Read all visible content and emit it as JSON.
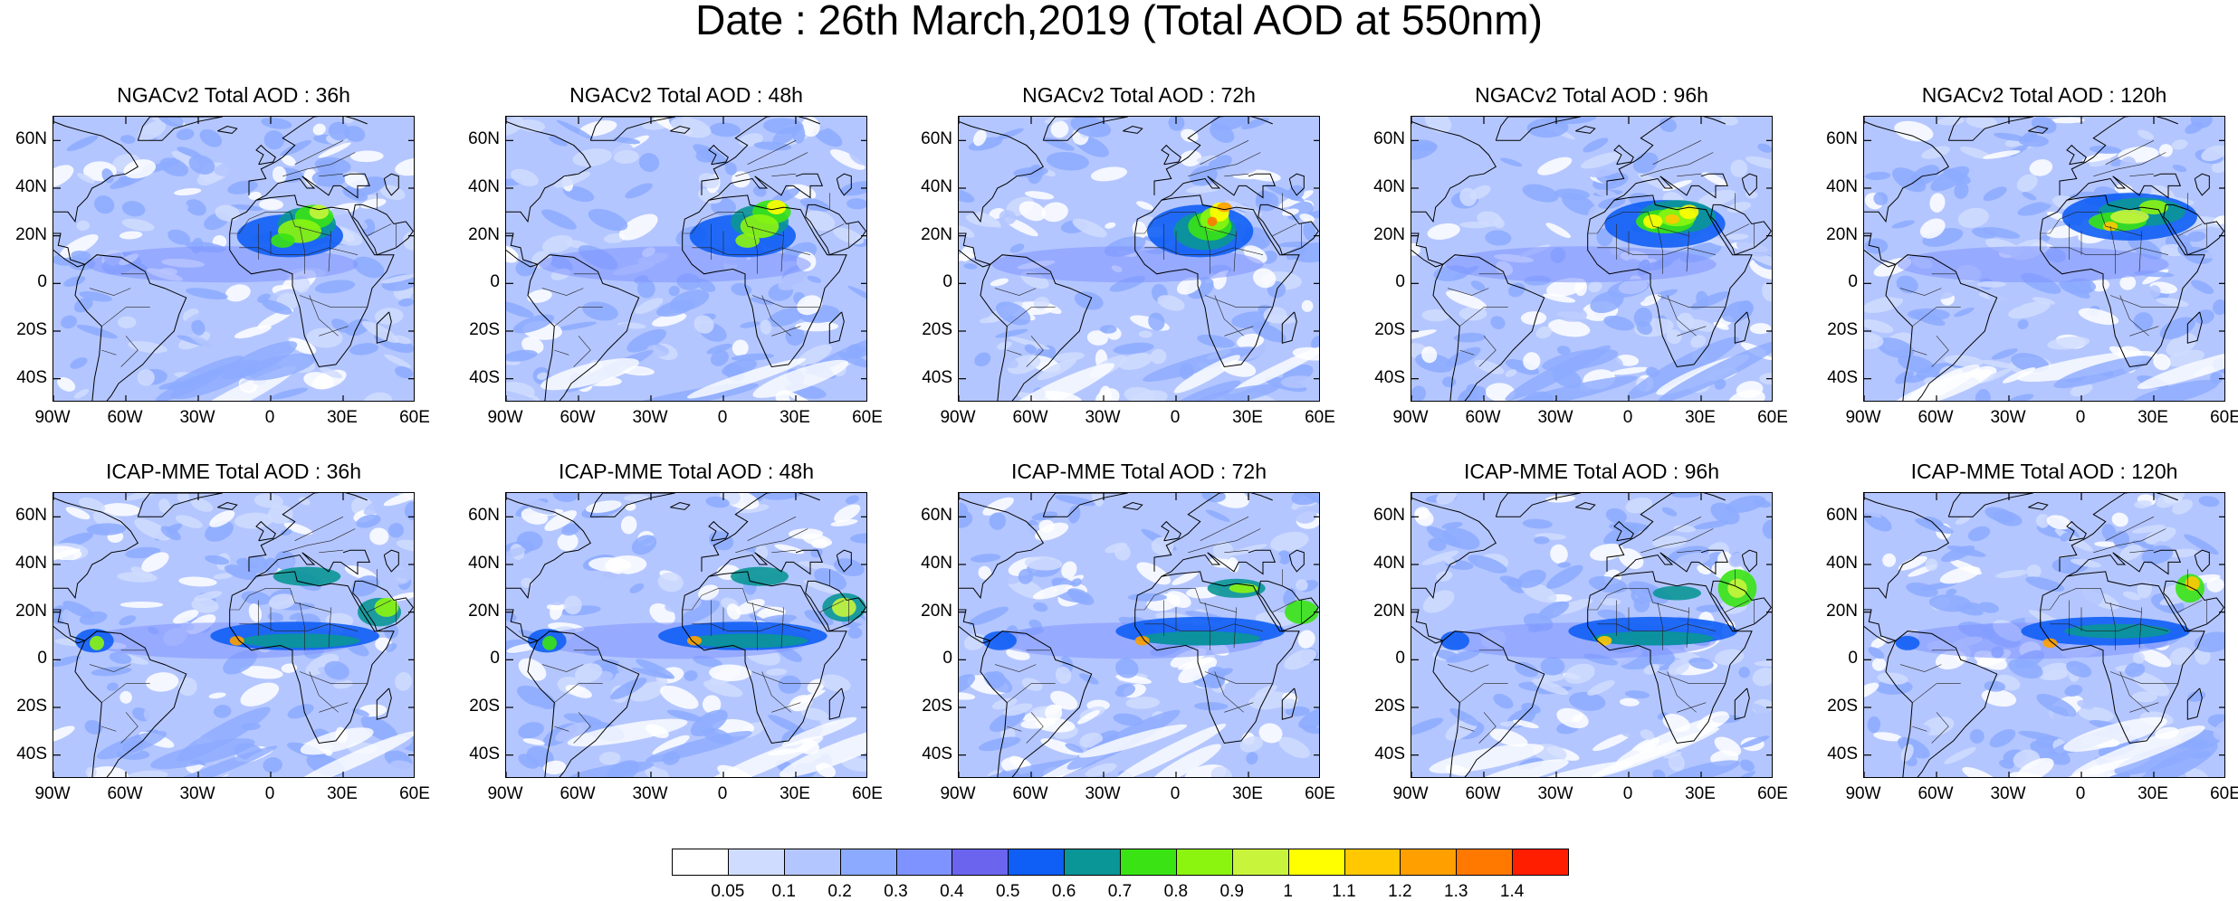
{
  "title": "Date : 26th March,2019 (Total AOD at 550nm)",
  "panels": [
    {
      "title": "NGACv2 Total AOD : 36h",
      "row": 0,
      "col": 0,
      "model": "ngac",
      "step": 0
    },
    {
      "title": "NGACv2 Total AOD : 48h",
      "row": 0,
      "col": 1,
      "model": "ngac",
      "step": 1
    },
    {
      "title": "NGACv2 Total AOD : 72h",
      "row": 0,
      "col": 2,
      "model": "ngac",
      "step": 2
    },
    {
      "title": "NGACv2 Total AOD : 96h",
      "row": 0,
      "col": 3,
      "model": "ngac",
      "step": 3
    },
    {
      "title": "NGACv2 Total AOD : 120h",
      "row": 0,
      "col": 4,
      "model": "ngac",
      "step": 4
    },
    {
      "title": "ICAP-MME Total AOD : 36h",
      "row": 1,
      "col": 0,
      "model": "icap",
      "step": 0
    },
    {
      "title": "ICAP-MME Total AOD : 48h",
      "row": 1,
      "col": 1,
      "model": "icap",
      "step": 1
    },
    {
      "title": "ICAP-MME Total AOD : 72h",
      "row": 1,
      "col": 2,
      "model": "icap",
      "step": 2
    },
    {
      "title": "ICAP-MME Total AOD : 96h",
      "row": 1,
      "col": 3,
      "model": "icap",
      "step": 3
    },
    {
      "title": "ICAP-MME Total AOD : 120h",
      "row": 1,
      "col": 4,
      "model": "icap",
      "step": 4
    }
  ],
  "map_extent": {
    "lon": [
      -90,
      60
    ],
    "lat": [
      -50,
      70
    ]
  },
  "y_ticks": [
    {
      "label": "60N",
      "lat": 60
    },
    {
      "label": "40N",
      "lat": 40
    },
    {
      "label": "20N",
      "lat": 20
    },
    {
      "label": "0",
      "lat": 0
    },
    {
      "label": "20S",
      "lat": -20
    },
    {
      "label": "40S",
      "lat": -40
    }
  ],
  "x_ticks": [
    {
      "label": "90W",
      "lon": -90
    },
    {
      "label": "60W",
      "lon": -60
    },
    {
      "label": "30W",
      "lon": -30
    },
    {
      "label": "0",
      "lon": 0
    },
    {
      "label": "30E",
      "lon": 30
    },
    {
      "label": "60E",
      "lon": 60
    }
  ],
  "colorbar": {
    "levels": [
      "0.05",
      "0.1",
      "0.2",
      "0.3",
      "0.4",
      "0.5",
      "0.6",
      "0.7",
      "0.8",
      "0.9",
      "1",
      "1.1",
      "1.2",
      "1.3",
      "1.4"
    ],
    "colors": [
      "#ffffff",
      "#d0dcff",
      "#b4c6ff",
      "#8caaff",
      "#7e93ff",
      "#6a64ee",
      "#0f5ef5",
      "#0a9696",
      "#39e314",
      "#8cf50f",
      "#c8f53c",
      "#ffff00",
      "#ffc800",
      "#ffa000",
      "#ff7800",
      "#ff1e00"
    ]
  }
}
